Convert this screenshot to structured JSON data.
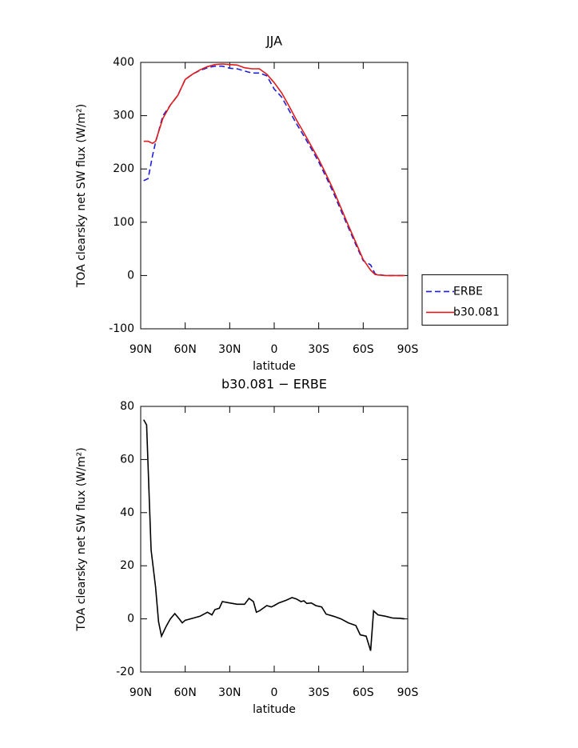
{
  "chart_data": [
    {
      "type": "line",
      "title": "JJA",
      "xlabel": "latitude",
      "ylabel": "TOA clearsky net SW flux (W/m²)",
      "x": [
        88,
        85,
        82,
        80,
        75,
        70,
        65,
        60,
        55,
        50,
        45,
        40,
        35,
        30,
        25,
        20,
        15,
        10,
        5,
        0,
        -5,
        -10,
        -15,
        -20,
        -25,
        -30,
        -35,
        -40,
        -45,
        -50,
        -55,
        -60,
        -65,
        -68,
        -70,
        -75,
        -80,
        -85,
        -88
      ],
      "series": [
        {
          "name": "ERBE",
          "color": "#1f1fd6",
          "linestyle": "dashed",
          "values": [
            178,
            182,
            225,
            250,
            300,
            320,
            338,
            368,
            378,
            385,
            390,
            393,
            393,
            389,
            388,
            384,
            380,
            380,
            375,
            350,
            335,
            310,
            285,
            262,
            238,
            213,
            185,
            155,
            122,
            90,
            58,
            28,
            20,
            3,
            2,
            0,
            0,
            0,
            0
          ]
        },
        {
          "name": "b30.081",
          "color": "#e01b1b",
          "linestyle": "solid",
          "values": [
            252,
            252,
            248,
            252,
            295,
            320,
            338,
            368,
            378,
            386,
            392,
            396,
            397,
            396,
            395,
            390,
            388,
            388,
            378,
            362,
            343,
            318,
            292,
            268,
            243,
            218,
            190,
            160,
            127,
            94,
            62,
            30,
            10,
            2,
            1,
            0,
            0,
            0,
            0
          ]
        }
      ],
      "xlim": [
        90,
        -90
      ],
      "ylim": [
        -100,
        400
      ],
      "xticks": [
        {
          "value": 90,
          "label": "90N"
        },
        {
          "value": 60,
          "label": "60N"
        },
        {
          "value": 30,
          "label": "30N"
        },
        0,
        {
          "value": -30,
          "label": "30S"
        },
        {
          "value": -60,
          "label": "60S"
        },
        {
          "value": -90,
          "label": "90S"
        }
      ],
      "yticks": [
        -100,
        0,
        100,
        200,
        300,
        400
      ],
      "legend": "right",
      "grid": false
    },
    {
      "type": "line",
      "title": "b30.081 − ERBE",
      "xlabel": "latitude",
      "ylabel": "TOA clearsky net SW flux (W/m²)",
      "x": [
        88,
        86,
        83,
        80,
        78,
        76,
        73,
        70,
        67,
        64,
        62,
        60,
        55,
        50,
        45,
        42,
        40,
        37,
        35,
        30,
        25,
        20,
        17,
        14,
        12,
        10,
        5,
        2,
        0,
        -3,
        -8,
        -12,
        -15,
        -18,
        -20,
        -22,
        -25,
        -28,
        -32,
        -35,
        -40,
        -45,
        -50,
        -55,
        -58,
        -62,
        -65,
        -67,
        -70,
        -75,
        -80,
        -85,
        -88
      ],
      "values": [
        75,
        73,
        26,
        12,
        -1,
        -6.5,
        -3,
        0,
        2,
        0,
        -1.5,
        -0.5,
        0.2,
        1,
        2.5,
        1.5,
        3.5,
        4,
        6.5,
        6,
        5.5,
        5.5,
        7.7,
        6.5,
        2.5,
        3,
        5,
        4.5,
        5,
        6,
        7,
        8,
        7.5,
        6.5,
        6.8,
        5.8,
        6,
        5,
        4.5,
        1.8,
        1,
        0,
        -1.5,
        -2.5,
        -6,
        -6.5,
        -12,
        3,
        1.5,
        1,
        0.3,
        0.2,
        0
      ],
      "color": "#000000",
      "linestyle": "solid",
      "xlim": [
        90,
        -90
      ],
      "ylim": [
        -20,
        80
      ],
      "xticks": [
        {
          "value": 90,
          "label": "90N"
        },
        {
          "value": 60,
          "label": "60N"
        },
        {
          "value": 30,
          "label": "30N"
        },
        0,
        {
          "value": -30,
          "label": "30S"
        },
        {
          "value": -60,
          "label": "60S"
        },
        {
          "value": -90,
          "label": "90S"
        }
      ],
      "yticks": [
        -20,
        0,
        20,
        40,
        60,
        80
      ],
      "grid": false
    }
  ]
}
